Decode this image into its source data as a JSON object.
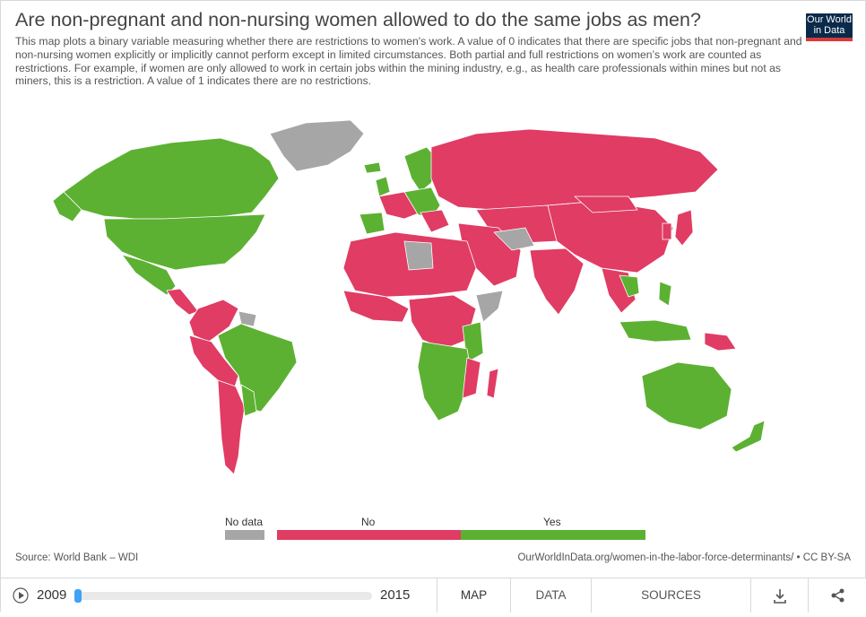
{
  "title": "Are non-pregnant and non-nursing women allowed to do the same jobs as men?",
  "subtitle": "This map plots a binary variable measuring whether there are restrictions to women's work. A value of 0 indicates that there are specific jobs that non-pregnant and non-nursing women explicitly or implicitly cannot perform except in limited circumstances. Both partial and full restrictions on women’s work are counted as restrictions. For example, if women are only allowed to work in certain jobs within the mining industry, e.g., as health care professionals within mines but not as miners, this is a restriction. A value of 1 indicates there are no restrictions.",
  "logo": {
    "line1": "Our World",
    "line2": "in Data"
  },
  "legend": {
    "items": [
      {
        "label": "No data",
        "color": "#a6a6a6"
      },
      {
        "label": "No",
        "color": "#e03c64"
      },
      {
        "label": "Yes",
        "color": "#5cb132"
      }
    ]
  },
  "colors": {
    "no": "#e03c64",
    "yes": "#5cb132",
    "nodata": "#a6a6a6",
    "ocean": "#ffffff",
    "border": "#ffffff"
  },
  "footer": {
    "source": "Source: World Bank – WDI",
    "link": "OurWorldInData.org/women-in-the-labor-force-determinants/ • CC BY-SA"
  },
  "timeline": {
    "start_year": "2009",
    "end_year": "2015",
    "selected": "2009"
  },
  "tabs": {
    "map": "MAP",
    "data": "DATA",
    "sources": "SOURCES"
  },
  "icons": {
    "play": "play-icon",
    "download": "download-icon",
    "share": "share-icon"
  }
}
